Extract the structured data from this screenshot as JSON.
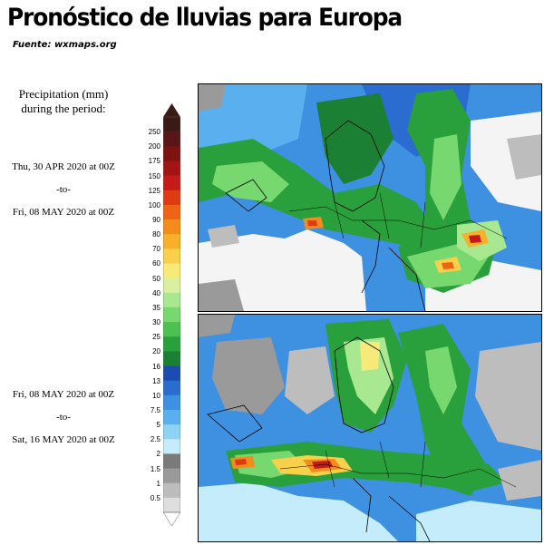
{
  "header": {
    "title": "Pronóstico de lluvias para Europa",
    "source": "Fuente: wxmaps.org"
  },
  "legend": {
    "label_line1": "Precipitation (mm)",
    "label_line2": "during the period:",
    "ticks": [
      "250",
      "200",
      "175",
      "150",
      "125",
      "100",
      "90",
      "80",
      "70",
      "60",
      "50",
      "40",
      "35",
      "30",
      "25",
      "20",
      "16",
      "13",
      "10",
      "7.5",
      "5",
      "2.5",
      "2",
      "1.5",
      "1",
      "0.5"
    ],
    "colors": [
      "#3a1a14",
      "#5a1616",
      "#7d1212",
      "#a31414",
      "#c61a1a",
      "#e03a14",
      "#ec6414",
      "#f38c1c",
      "#f7b029",
      "#f8d04a",
      "#f8ea78",
      "#d8f0a0",
      "#a8e890",
      "#78d870",
      "#4cc050",
      "#2aa03c",
      "#1c8034",
      "#1c4cb0",
      "#2a6cd0",
      "#3e90e0",
      "#5ab0ee",
      "#8ed2f4",
      "#c4ecfa",
      "#7a7a7a",
      "#9a9a9a",
      "#bdbdbd",
      "#dedede"
    ]
  },
  "periods": [
    {
      "start": "Thu, 30 APR 2020 at 00Z",
      "sep": "-to-",
      "end": "Fri, 08 MAY 2020 at 00Z"
    },
    {
      "start": "Fri, 08 MAY 2020 at 00Z",
      "sep": "-to-",
      "end": "Sat, 16 MAY 2020 at 00Z"
    }
  ]
}
